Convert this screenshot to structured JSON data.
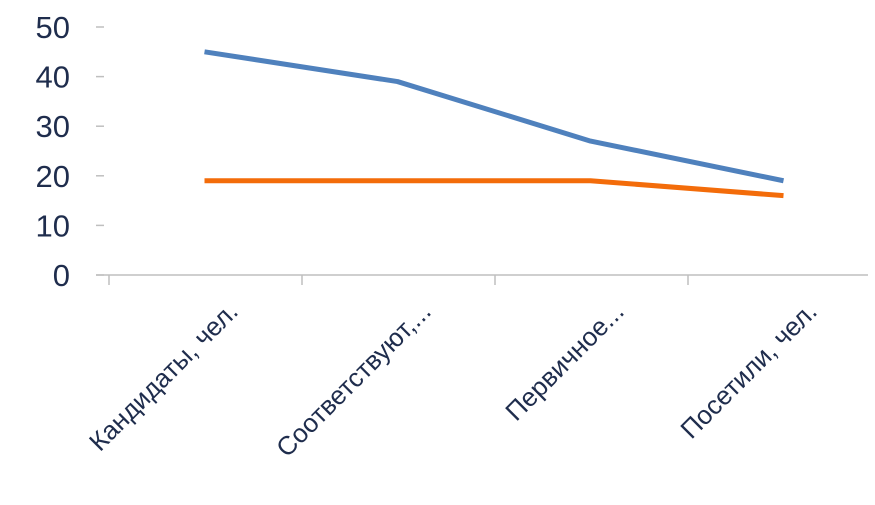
{
  "chart_data": {
    "type": "line",
    "categories": [
      "Кандидаты, чел.",
      "Соответствуют,...",
      "Первичное...",
      "Посетили, чел."
    ],
    "series": [
      {
        "values": [
          45,
          39,
          27,
          19
        ],
        "color": "#4f81bd"
      },
      {
        "values": [
          19,
          19,
          19,
          16
        ],
        "color": "#f36c0a"
      }
    ],
    "ylim": [
      0,
      50
    ],
    "yticks": [
      "0",
      "10",
      "20",
      "30",
      "40",
      "50"
    ],
    "grid": false,
    "legend": "none",
    "axis_color": "#bfbfbf",
    "label_color": "#1f2d4d"
  }
}
